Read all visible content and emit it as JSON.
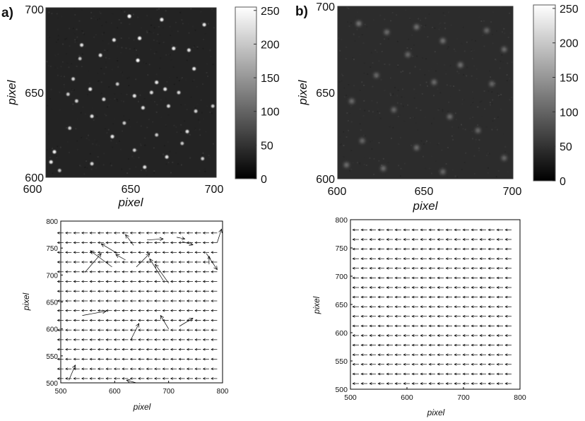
{
  "panel_labels": [
    "a)",
    "b)"
  ],
  "chart_data": [
    {
      "id": "a-image",
      "type": "heatmap",
      "panel": "a)",
      "xlabel": "pixel",
      "ylabel": "pixel",
      "xlim": [
        600,
        700
      ],
      "ylim": [
        600,
        700
      ],
      "xticks": [
        600,
        650,
        700
      ],
      "yticks": [
        600,
        650,
        700
      ],
      "colorbar": {
        "range": [
          0,
          255
        ],
        "ticks": [
          0,
          50,
          100,
          150,
          200,
          250
        ]
      },
      "background_level": 35,
      "spots": [
        [
          649,
          695,
          255
        ],
        [
          668,
          693,
          240
        ],
        [
          693,
          690,
          230
        ],
        [
          655,
          682,
          245
        ],
        [
          640,
          681,
          230
        ],
        [
          621,
          678,
          225
        ],
        [
          675,
          676,
          235
        ],
        [
          684,
          675,
          225
        ],
        [
          632,
          672,
          225
        ],
        [
          654,
          669,
          250
        ],
        [
          687,
          664,
          230
        ],
        [
          616,
          658,
          215
        ],
        [
          665,
          656,
          230
        ],
        [
          642,
          655,
          205
        ],
        [
          626,
          652,
          235
        ],
        [
          662,
          650,
          220
        ],
        [
          670,
          652,
          230
        ],
        [
          678,
          650,
          215
        ],
        [
          613,
          649,
          205
        ],
        [
          652,
          648,
          230
        ],
        [
          634,
          646,
          220
        ],
        [
          618,
          645,
          210
        ],
        [
          672,
          642,
          220
        ],
        [
          657,
          641,
          225
        ],
        [
          688,
          639,
          210
        ],
        [
          627,
          636,
          225
        ],
        [
          646,
          632,
          205
        ],
        [
          614,
          629,
          210
        ],
        [
          683,
          627,
          225
        ],
        [
          665,
          625,
          205
        ],
        [
          639,
          624,
          230
        ],
        [
          652,
          616,
          210
        ],
        [
          605,
          615,
          240
        ],
        [
          671,
          612,
          225
        ],
        [
          692,
          611,
          205
        ],
        [
          603,
          609,
          235
        ],
        [
          627,
          608,
          215
        ],
        [
          658,
          606,
          225
        ],
        [
          608,
          604,
          200
        ],
        [
          680,
          620,
          200
        ],
        [
          620,
          670,
          200
        ],
        [
          698,
          642,
          205
        ]
      ]
    },
    {
      "id": "b-image",
      "type": "heatmap",
      "panel": "b)",
      "xlabel": "pixel",
      "ylabel": "pixel",
      "xlim": [
        600,
        700
      ],
      "ylim": [
        600,
        700
      ],
      "xticks": [
        600,
        650,
        700
      ],
      "yticks": [
        600,
        650,
        700
      ],
      "colorbar": {
        "range": [
          0,
          255
        ],
        "ticks": [
          0,
          50,
          100,
          150,
          200,
          250
        ]
      },
      "background_level": 45,
      "spots": [
        [
          612,
          690,
          135
        ],
        [
          628,
          685,
          125
        ],
        [
          645,
          688,
          130
        ],
        [
          660,
          680,
          130
        ],
        [
          685,
          686,
          120
        ],
        [
          695,
          675,
          125
        ],
        [
          640,
          672,
          120
        ],
        [
          670,
          666,
          130
        ],
        [
          622,
          660,
          120
        ],
        [
          655,
          656,
          125
        ],
        [
          688,
          655,
          120
        ],
        [
          608,
          645,
          125
        ],
        [
          632,
          640,
          120
        ],
        [
          664,
          636,
          125
        ],
        [
          680,
          628,
          120
        ],
        [
          614,
          622,
          120
        ],
        [
          645,
          618,
          125
        ],
        [
          695,
          612,
          120
        ],
        [
          626,
          606,
          125
        ],
        [
          660,
          604,
          120
        ],
        [
          605,
          608,
          125
        ]
      ]
    },
    {
      "id": "a-vector",
      "type": "scatter",
      "panel": "a)",
      "xlabel": "pixel",
      "ylabel": "pixel",
      "xlim": [
        500,
        800
      ],
      "ylim": [
        500,
        800
      ],
      "xticks": [
        500,
        600,
        700,
        800
      ],
      "yticks": [
        500,
        550,
        600,
        650,
        700,
        750,
        800
      ],
      "grid_x": [
        505,
        800,
        15
      ],
      "grid_y": [
        508,
        786,
        18
      ],
      "base_vector": [
        -11,
        0
      ],
      "outliers": [
        {
          "x": 515,
          "y": 505,
          "dx": 12,
          "dy": 28
        },
        {
          "x": 540,
          "y": 625,
          "dx": 44,
          "dy": 8
        },
        {
          "x": 545,
          "y": 705,
          "dx": 30,
          "dy": 35
        },
        {
          "x": 595,
          "y": 715,
          "dx": -40,
          "dy": 30
        },
        {
          "x": 605,
          "y": 740,
          "dx": -30,
          "dy": 18
        },
        {
          "x": 640,
          "y": 715,
          "dx": 25,
          "dy": 25
        },
        {
          "x": 620,
          "y": 728,
          "dx": -18,
          "dy": 10
        },
        {
          "x": 635,
          "y": 755,
          "dx": -15,
          "dy": 20
        },
        {
          "x": 660,
          "y": 765,
          "dx": 30,
          "dy": 2
        },
        {
          "x": 690,
          "y": 690,
          "dx": -25,
          "dy": 40
        },
        {
          "x": 700,
          "y": 685,
          "dx": -25,
          "dy": 35
        },
        {
          "x": 700,
          "y": 600,
          "dx": -15,
          "dy": 25
        },
        {
          "x": 720,
          "y": 605,
          "dx": 25,
          "dy": 15
        },
        {
          "x": 630,
          "y": 580,
          "dx": 15,
          "dy": 30
        },
        {
          "x": 725,
          "y": 762,
          "dx": 20,
          "dy": -6
        },
        {
          "x": 770,
          "y": 740,
          "dx": 20,
          "dy": -30
        },
        {
          "x": 790,
          "y": 760,
          "dx": 8,
          "dy": 25
        },
        {
          "x": 775,
          "y": 720,
          "dx": 0,
          "dy": 15
        },
        {
          "x": 715,
          "y": 770,
          "dx": 15,
          "dy": -3
        },
        {
          "x": 640,
          "y": 500,
          "dx": -18,
          "dy": 5
        }
      ]
    },
    {
      "id": "b-vector",
      "type": "scatter",
      "panel": "b)",
      "xlabel": "pixel",
      "ylabel": "pixel",
      "xlim": [
        500,
        800
      ],
      "ylim": [
        500,
        800
      ],
      "xticks": [
        500,
        600,
        700,
        800
      ],
      "yticks": [
        500,
        550,
        600,
        650,
        700,
        750,
        800
      ],
      "grid_x": [
        515,
        785,
        15
      ],
      "grid_y": [
        510,
        785,
        17
      ],
      "base_vector": [
        -11,
        0
      ],
      "outliers": []
    }
  ]
}
